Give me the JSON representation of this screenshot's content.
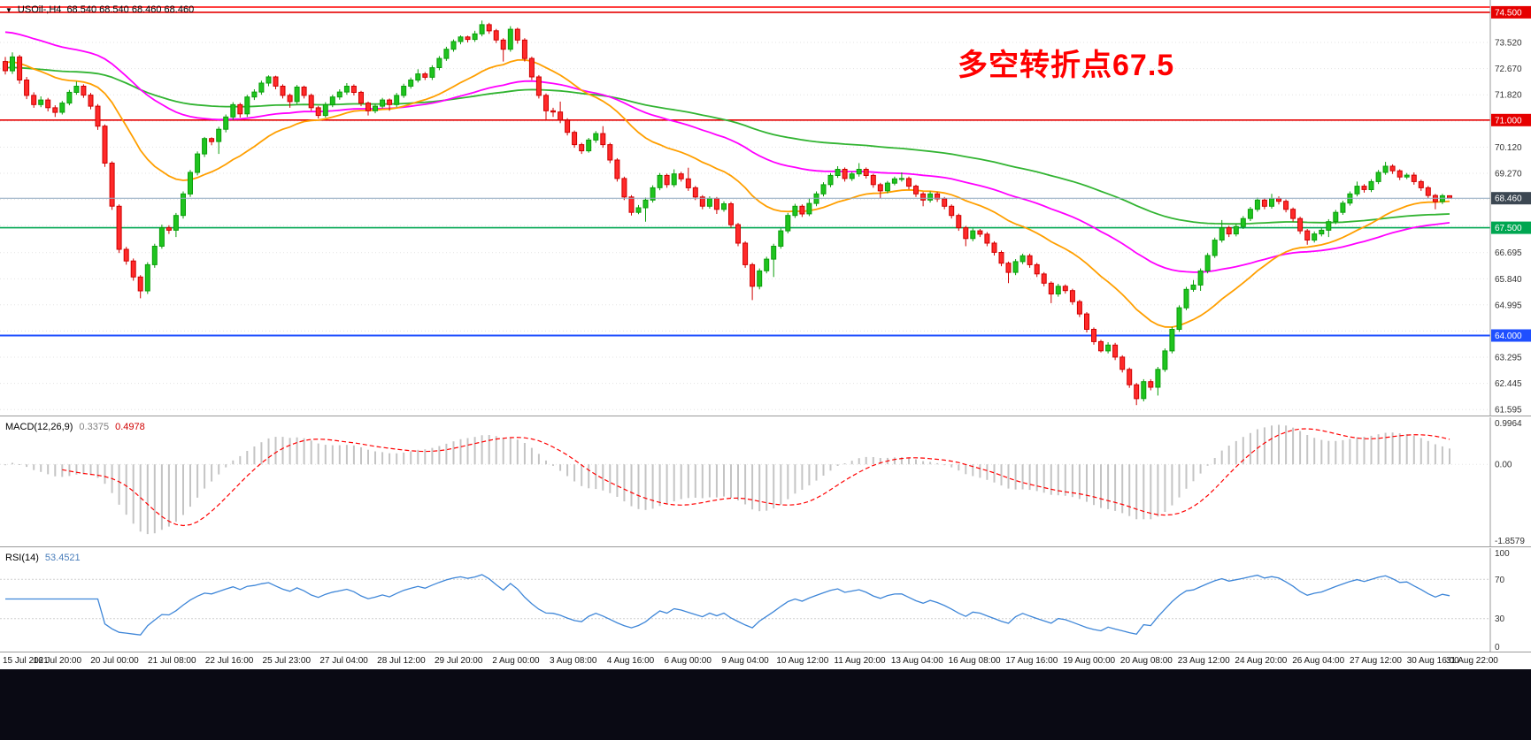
{
  "window": {
    "marker": "▼",
    "symbol_label": "USOil-,H4",
    "ohlc_label": "68.540 68.540 68.460 68.460"
  },
  "annotation": {
    "text": "多空转折点67.5",
    "color": "#ff0000"
  },
  "colors": {
    "up": "#1fc41f",
    "up_stroke": "#0b9e0b",
    "down": "#ff2a2a",
    "down_stroke": "#cf0000",
    "macd_hist": "#c4c4c4",
    "macd_signal": "#ff0000",
    "rsi_line": "#3e86d8",
    "price_box": "#3c4752",
    "grid": "#e3e3e3",
    "axis_border": "#9a9a9a",
    "background": "#ffffff",
    "bottom_bar": "#0a0a14"
  },
  "chart_data": {
    "type": "candlestick",
    "symbol": "USOil",
    "timeframe": "H4",
    "current_price": 68.46,
    "current_price_label": "68.460",
    "price_axis": {
      "min": 61.4,
      "max": 74.9,
      "ticks": [
        {
          "label": "73.520",
          "value": 73.52
        },
        {
          "label": "72.670",
          "value": 72.67
        },
        {
          "label": "71.820",
          "value": 71.82
        },
        {
          "label": "70.120",
          "value": 70.12
        },
        {
          "label": "69.270",
          "value": 69.27
        },
        {
          "label": "66.695",
          "value": 66.695
        },
        {
          "label": "65.840",
          "value": 65.84
        },
        {
          "label": "64.995",
          "value": 64.995
        },
        {
          "label": "63.295",
          "value": 63.295
        },
        {
          "label": "62.445",
          "value": 62.445
        },
        {
          "label": "61.595",
          "value": 61.595
        }
      ],
      "hidden_grid": [
        70.97,
        68.42,
        67.57,
        64.145
      ]
    },
    "hlines": [
      {
        "value": 74.67,
        "label": "",
        "color": "#ff0000",
        "width": 1.4
      },
      {
        "value": 74.5,
        "label": "74.500",
        "color": "#e60000",
        "width": 1.6
      },
      {
        "value": 71.0,
        "label": "71.000",
        "color": "#e60000",
        "width": 1.6
      },
      {
        "value": 67.5,
        "label": "67.500",
        "color": "#00a651",
        "width": 1.6
      },
      {
        "value": 64.0,
        "label": "64.000",
        "color": "#1f4fff",
        "width": 2
      }
    ],
    "moving_averages": [
      {
        "name": "ma-long-green",
        "period": 120,
        "seed": 72.7,
        "color": "#32b432"
      },
      {
        "name": "ma-mid-magenta",
        "period": 60,
        "seed": 73.9,
        "color": "#ff00ff"
      },
      {
        "name": "ma-fast-orange",
        "period": 24,
        "seed": 72.9,
        "color": "#ff9f00"
      }
    ],
    "candles": [
      [
        72.9,
        73.05,
        72.48,
        72.6
      ],
      [
        72.6,
        73.2,
        72.5,
        73.05
      ],
      [
        73.05,
        73.12,
        72.18,
        72.3
      ],
      [
        72.3,
        72.4,
        71.68,
        71.8
      ],
      [
        71.8,
        71.9,
        71.4,
        71.5
      ],
      [
        71.5,
        71.77,
        71.42,
        71.65
      ],
      [
        71.65,
        71.72,
        71.28,
        71.4
      ],
      [
        71.4,
        71.48,
        71.1,
        71.25
      ],
      [
        71.25,
        71.62,
        71.18,
        71.55
      ],
      [
        71.55,
        71.98,
        71.48,
        71.9
      ],
      [
        71.9,
        72.25,
        71.82,
        72.1
      ],
      [
        72.1,
        72.16,
        71.72,
        71.81
      ],
      [
        71.81,
        71.88,
        71.35,
        71.45
      ],
      [
        71.45,
        71.52,
        70.68,
        70.8
      ],
      [
        70.8,
        70.86,
        69.48,
        69.6
      ],
      [
        69.6,
        69.66,
        68.08,
        68.2
      ],
      [
        68.2,
        68.26,
        66.68,
        66.8
      ],
      [
        66.8,
        66.88,
        66.3,
        66.42
      ],
      [
        66.42,
        66.5,
        65.78,
        65.9
      ],
      [
        65.9,
        65.96,
        65.21,
        65.45
      ],
      [
        65.45,
        66.38,
        65.35,
        66.3
      ],
      [
        66.3,
        66.98,
        66.2,
        66.9
      ],
      [
        66.9,
        67.6,
        66.82,
        67.5
      ],
      [
        67.5,
        67.58,
        67.3,
        67.42
      ],
      [
        67.42,
        67.98,
        67.2,
        67.9
      ],
      [
        67.9,
        68.68,
        67.8,
        68.6
      ],
      [
        68.6,
        69.38,
        68.5,
        69.3
      ],
      [
        69.3,
        69.98,
        69.2,
        69.9
      ],
      [
        69.9,
        70.45,
        69.8,
        70.4
      ],
      [
        70.4,
        70.44,
        70.18,
        70.3
      ],
      [
        70.3,
        70.78,
        69.9,
        70.7
      ],
      [
        70.7,
        71.18,
        70.6,
        71.1
      ],
      [
        71.1,
        71.58,
        71.0,
        71.5
      ],
      [
        71.5,
        71.56,
        71.08,
        71.2
      ],
      [
        71.2,
        71.82,
        71.1,
        71.75
      ],
      [
        71.75,
        72.0,
        71.65,
        71.91
      ],
      [
        71.91,
        72.28,
        71.82,
        72.2
      ],
      [
        72.2,
        72.45,
        72.1,
        72.4
      ],
      [
        72.4,
        72.44,
        72.0,
        72.1
      ],
      [
        72.1,
        72.16,
        71.7,
        71.8
      ],
      [
        71.8,
        71.86,
        71.4,
        71.6
      ],
      [
        71.6,
        72.14,
        71.52,
        72.07
      ],
      [
        72.07,
        72.12,
        71.7,
        71.8
      ],
      [
        71.8,
        71.86,
        71.3,
        71.4
      ],
      [
        71.4,
        71.46,
        71.05,
        71.15
      ],
      [
        71.15,
        71.58,
        71.08,
        71.5
      ],
      [
        71.5,
        71.82,
        71.42,
        71.75
      ],
      [
        71.75,
        72.0,
        71.66,
        71.91
      ],
      [
        71.91,
        72.2,
        71.82,
        72.1
      ],
      [
        72.1,
        72.16,
        71.8,
        71.9
      ],
      [
        71.9,
        71.95,
        71.45,
        71.55
      ],
      [
        71.55,
        71.6,
        71.15,
        71.3
      ],
      [
        71.3,
        71.52,
        71.22,
        71.45
      ],
      [
        71.45,
        71.72,
        71.38,
        71.65
      ],
      [
        71.65,
        71.7,
        71.3,
        71.5
      ],
      [
        71.5,
        71.88,
        71.42,
        71.8
      ],
      [
        71.8,
        72.18,
        71.72,
        72.1
      ],
      [
        72.1,
        72.38,
        72.02,
        72.3
      ],
      [
        72.3,
        72.65,
        72.22,
        72.5
      ],
      [
        72.5,
        72.56,
        72.3,
        72.39
      ],
      [
        72.39,
        72.78,
        72.3,
        72.7
      ],
      [
        72.7,
        73.08,
        72.62,
        73.0
      ],
      [
        73.0,
        73.38,
        72.92,
        73.3
      ],
      [
        73.3,
        73.62,
        73.22,
        73.55
      ],
      [
        73.55,
        73.75,
        73.46,
        73.7
      ],
      [
        73.7,
        73.74,
        73.52,
        73.62
      ],
      [
        73.62,
        73.9,
        73.54,
        73.8
      ],
      [
        73.8,
        74.23,
        73.72,
        74.1
      ],
      [
        74.1,
        74.16,
        73.8,
        73.9
      ],
      [
        73.9,
        73.96,
        73.5,
        73.6
      ],
      [
        73.6,
        73.66,
        72.9,
        73.3
      ],
      [
        73.3,
        74.05,
        73.22,
        73.95
      ],
      [
        73.95,
        74.0,
        73.48,
        73.6
      ],
      [
        73.6,
        73.66,
        72.9,
        73.0
      ],
      [
        73.0,
        73.06,
        72.3,
        72.4
      ],
      [
        72.4,
        72.46,
        71.7,
        71.8
      ],
      [
        71.8,
        71.86,
        71.0,
        71.3
      ],
      [
        71.3,
        71.4,
        71.1,
        71.26
      ],
      [
        71.26,
        71.6,
        70.9,
        71.0
      ],
      [
        71.0,
        71.06,
        70.5,
        70.6
      ],
      [
        70.6,
        70.66,
        70.1,
        70.2
      ],
      [
        70.2,
        70.26,
        69.9,
        70.0
      ],
      [
        70.0,
        70.42,
        69.94,
        70.35
      ],
      [
        70.35,
        70.64,
        70.26,
        70.56
      ],
      [
        70.56,
        70.8,
        70.1,
        70.2
      ],
      [
        70.2,
        70.26,
        69.6,
        69.7
      ],
      [
        69.7,
        69.76,
        69.0,
        69.1
      ],
      [
        69.1,
        69.16,
        68.4,
        68.5
      ],
      [
        68.5,
        68.56,
        67.9,
        68.0
      ],
      [
        68.0,
        68.24,
        67.94,
        68.15
      ],
      [
        68.15,
        68.48,
        67.7,
        68.4
      ],
      [
        68.4,
        68.88,
        68.32,
        68.8
      ],
      [
        68.8,
        69.28,
        68.72,
        69.2
      ],
      [
        69.2,
        69.26,
        68.8,
        68.9
      ],
      [
        68.9,
        69.4,
        68.82,
        69.25
      ],
      [
        69.25,
        69.32,
        69.0,
        69.09
      ],
      [
        69.09,
        69.45,
        68.7,
        68.8
      ],
      [
        68.8,
        68.86,
        68.4,
        68.5
      ],
      [
        68.5,
        68.56,
        68.1,
        68.2
      ],
      [
        68.2,
        68.52,
        68.12,
        68.45
      ],
      [
        68.45,
        68.5,
        67.95,
        68.1
      ],
      [
        68.1,
        68.36,
        68.02,
        68.28
      ],
      [
        68.28,
        68.34,
        67.5,
        67.6
      ],
      [
        67.6,
        67.66,
        66.9,
        67.0
      ],
      [
        67.0,
        67.06,
        66.2,
        66.3
      ],
      [
        66.3,
        66.36,
        65.15,
        65.6
      ],
      [
        65.6,
        66.18,
        65.5,
        66.1
      ],
      [
        66.1,
        66.56,
        66.02,
        66.48
      ],
      [
        66.48,
        66.98,
        65.9,
        66.9
      ],
      [
        66.9,
        67.48,
        66.82,
        67.4
      ],
      [
        67.4,
        67.98,
        67.32,
        67.9
      ],
      [
        67.9,
        68.28,
        67.82,
        68.2
      ],
      [
        68.2,
        68.26,
        67.85,
        67.95
      ],
      [
        67.95,
        68.45,
        67.88,
        68.29
      ],
      [
        68.29,
        68.68,
        68.2,
        68.6
      ],
      [
        68.6,
        68.98,
        68.52,
        68.9
      ],
      [
        68.9,
        69.28,
        68.82,
        69.2
      ],
      [
        69.2,
        69.5,
        69.12,
        69.4
      ],
      [
        69.4,
        69.46,
        69.0,
        69.1
      ],
      [
        69.1,
        69.32,
        69.02,
        69.25
      ],
      [
        69.25,
        69.6,
        69.16,
        69.4
      ],
      [
        69.4,
        69.46,
        69.1,
        69.2
      ],
      [
        69.2,
        69.26,
        68.8,
        68.9
      ],
      [
        68.9,
        68.96,
        68.45,
        68.7
      ],
      [
        68.7,
        69.02,
        68.62,
        68.95
      ],
      [
        68.95,
        69.16,
        68.88,
        69.09
      ],
      [
        69.09,
        69.3,
        69.0,
        69.1
      ],
      [
        69.1,
        69.16,
        68.75,
        68.85
      ],
      [
        68.85,
        68.9,
        68.5,
        68.6
      ],
      [
        68.6,
        68.66,
        68.2,
        68.4
      ],
      [
        68.4,
        68.68,
        68.32,
        68.6
      ],
      [
        68.6,
        68.66,
        68.34,
        68.44
      ],
      [
        68.44,
        68.5,
        68.1,
        68.2
      ],
      [
        68.2,
        68.26,
        67.8,
        67.9
      ],
      [
        67.9,
        67.96,
        67.4,
        67.5
      ],
      [
        67.5,
        67.56,
        66.9,
        67.15
      ],
      [
        67.15,
        67.48,
        67.06,
        67.4
      ],
      [
        67.4,
        67.46,
        67.2,
        67.29
      ],
      [
        67.29,
        67.36,
        66.9,
        67.0
      ],
      [
        67.0,
        67.06,
        66.6,
        66.7
      ],
      [
        66.7,
        66.76,
        66.25,
        66.35
      ],
      [
        66.35,
        66.4,
        65.7,
        66.05
      ],
      [
        66.05,
        66.48,
        65.96,
        66.4
      ],
      [
        66.4,
        66.66,
        66.32,
        66.59
      ],
      [
        66.59,
        66.66,
        66.2,
        66.3
      ],
      [
        66.3,
        66.36,
        65.9,
        66.0
      ],
      [
        66.0,
        66.06,
        65.6,
        65.7
      ],
      [
        65.7,
        65.76,
        65.05,
        65.35
      ],
      [
        65.35,
        65.68,
        65.26,
        65.6
      ],
      [
        65.6,
        65.66,
        65.36,
        65.46
      ],
      [
        65.46,
        65.52,
        65.0,
        65.1
      ],
      [
        65.1,
        65.16,
        64.6,
        64.7
      ],
      [
        64.7,
        64.76,
        64.1,
        64.2
      ],
      [
        64.2,
        64.26,
        63.7,
        63.8
      ],
      [
        63.8,
        63.86,
        63.45,
        63.5
      ],
      [
        63.5,
        63.78,
        63.42,
        63.69
      ],
      [
        63.69,
        63.76,
        63.2,
        63.3
      ],
      [
        63.3,
        63.36,
        62.8,
        62.9
      ],
      [
        62.9,
        62.96,
        62.3,
        62.4
      ],
      [
        62.4,
        62.46,
        61.74,
        61.95
      ],
      [
        61.95,
        62.58,
        61.86,
        62.5
      ],
      [
        62.5,
        62.58,
        62.22,
        62.32
      ],
      [
        62.32,
        62.98,
        62.05,
        62.9
      ],
      [
        62.9,
        63.58,
        62.82,
        63.5
      ],
      [
        63.5,
        64.28,
        63.42,
        64.2
      ],
      [
        64.2,
        64.98,
        64.12,
        64.9
      ],
      [
        64.9,
        65.58,
        64.82,
        65.5
      ],
      [
        65.5,
        65.8,
        65.42,
        65.64
      ],
      [
        65.64,
        66.18,
        65.45,
        66.1
      ],
      [
        66.1,
        66.68,
        66.02,
        66.6
      ],
      [
        66.6,
        67.18,
        66.52,
        67.1
      ],
      [
        67.1,
        67.75,
        67.02,
        67.5
      ],
      [
        67.5,
        67.56,
        67.2,
        67.3
      ],
      [
        67.3,
        67.62,
        67.22,
        67.54
      ],
      [
        67.54,
        67.88,
        67.46,
        67.8
      ],
      [
        67.8,
        68.18,
        67.72,
        68.1
      ],
      [
        68.1,
        68.48,
        68.02,
        68.4
      ],
      [
        68.4,
        68.46,
        68.1,
        68.2
      ],
      [
        68.2,
        68.6,
        68.12,
        68.45
      ],
      [
        68.45,
        68.52,
        68.26,
        68.36
      ],
      [
        68.36,
        68.42,
        68.0,
        68.1
      ],
      [
        68.1,
        68.16,
        67.7,
        67.8
      ],
      [
        67.8,
        67.86,
        67.3,
        67.4
      ],
      [
        67.4,
        67.46,
        66.95,
        67.1
      ],
      [
        67.1,
        67.38,
        67.02,
        67.3
      ],
      [
        67.3,
        67.5,
        67.22,
        67.42
      ],
      [
        67.42,
        67.78,
        67.2,
        67.7
      ],
      [
        67.7,
        68.08,
        67.62,
        68.0
      ],
      [
        68.0,
        68.38,
        67.92,
        68.3
      ],
      [
        68.3,
        68.68,
        68.22,
        68.6
      ],
      [
        68.6,
        69.0,
        68.52,
        68.85
      ],
      [
        68.85,
        68.92,
        68.64,
        68.74
      ],
      [
        68.74,
        69.08,
        68.66,
        69.0
      ],
      [
        69.0,
        69.38,
        68.92,
        69.3
      ],
      [
        69.3,
        69.64,
        69.22,
        69.5
      ],
      [
        69.5,
        69.56,
        69.25,
        69.35
      ],
      [
        69.35,
        69.4,
        69.05,
        69.15
      ],
      [
        69.15,
        69.28,
        69.08,
        69.21
      ],
      [
        69.21,
        69.3,
        68.9,
        69.0
      ],
      [
        69.0,
        69.06,
        68.7,
        68.8
      ],
      [
        68.8,
        68.86,
        68.45,
        68.55
      ],
      [
        68.55,
        68.6,
        68.1,
        68.35
      ],
      [
        68.35,
        68.6,
        68.27,
        68.54
      ],
      [
        68.54,
        68.54,
        68.46,
        68.46
      ]
    ],
    "time_axis": [
      "15 Jul 2021",
      "16 Jul 20:00",
      "20 Jul 00:00",
      "21 Jul 08:00",
      "22 Jul 16:00",
      "25 Jul 23:00",
      "27 Jul 04:00",
      "28 Jul 12:00",
      "29 Jul 20:00",
      "2 Aug 00:00",
      "3 Aug 08:00",
      "4 Aug 16:00",
      "6 Aug 00:00",
      "9 Aug 04:00",
      "10 Aug 12:00",
      "11 Aug 20:00",
      "13 Aug 04:00",
      "16 Aug 08:00",
      "17 Aug 16:00",
      "19 Aug 00:00",
      "20 Aug 08:00",
      "23 Aug 12:00",
      "24 Aug 20:00",
      "26 Aug 04:00",
      "27 Aug 12:00",
      "30 Aug 16:00",
      "31 Aug 22:00"
    ],
    "macd": {
      "label": "MACD(12,26,9)",
      "value_main": "0.3375",
      "value_signal": "0.4978",
      "fast": 12,
      "slow": 26,
      "signal": 9,
      "axis": [
        {
          "label": "0.9964",
          "value": 0.9964
        },
        {
          "label": "0.00",
          "value": 0
        },
        {
          "label": "-1.8579",
          "value": -1.8579
        }
      ]
    },
    "rsi": {
      "label": "RSI(14)",
      "value_text": "53.4521",
      "period": 14,
      "levels": [
        100,
        70,
        30,
        0
      ]
    }
  }
}
